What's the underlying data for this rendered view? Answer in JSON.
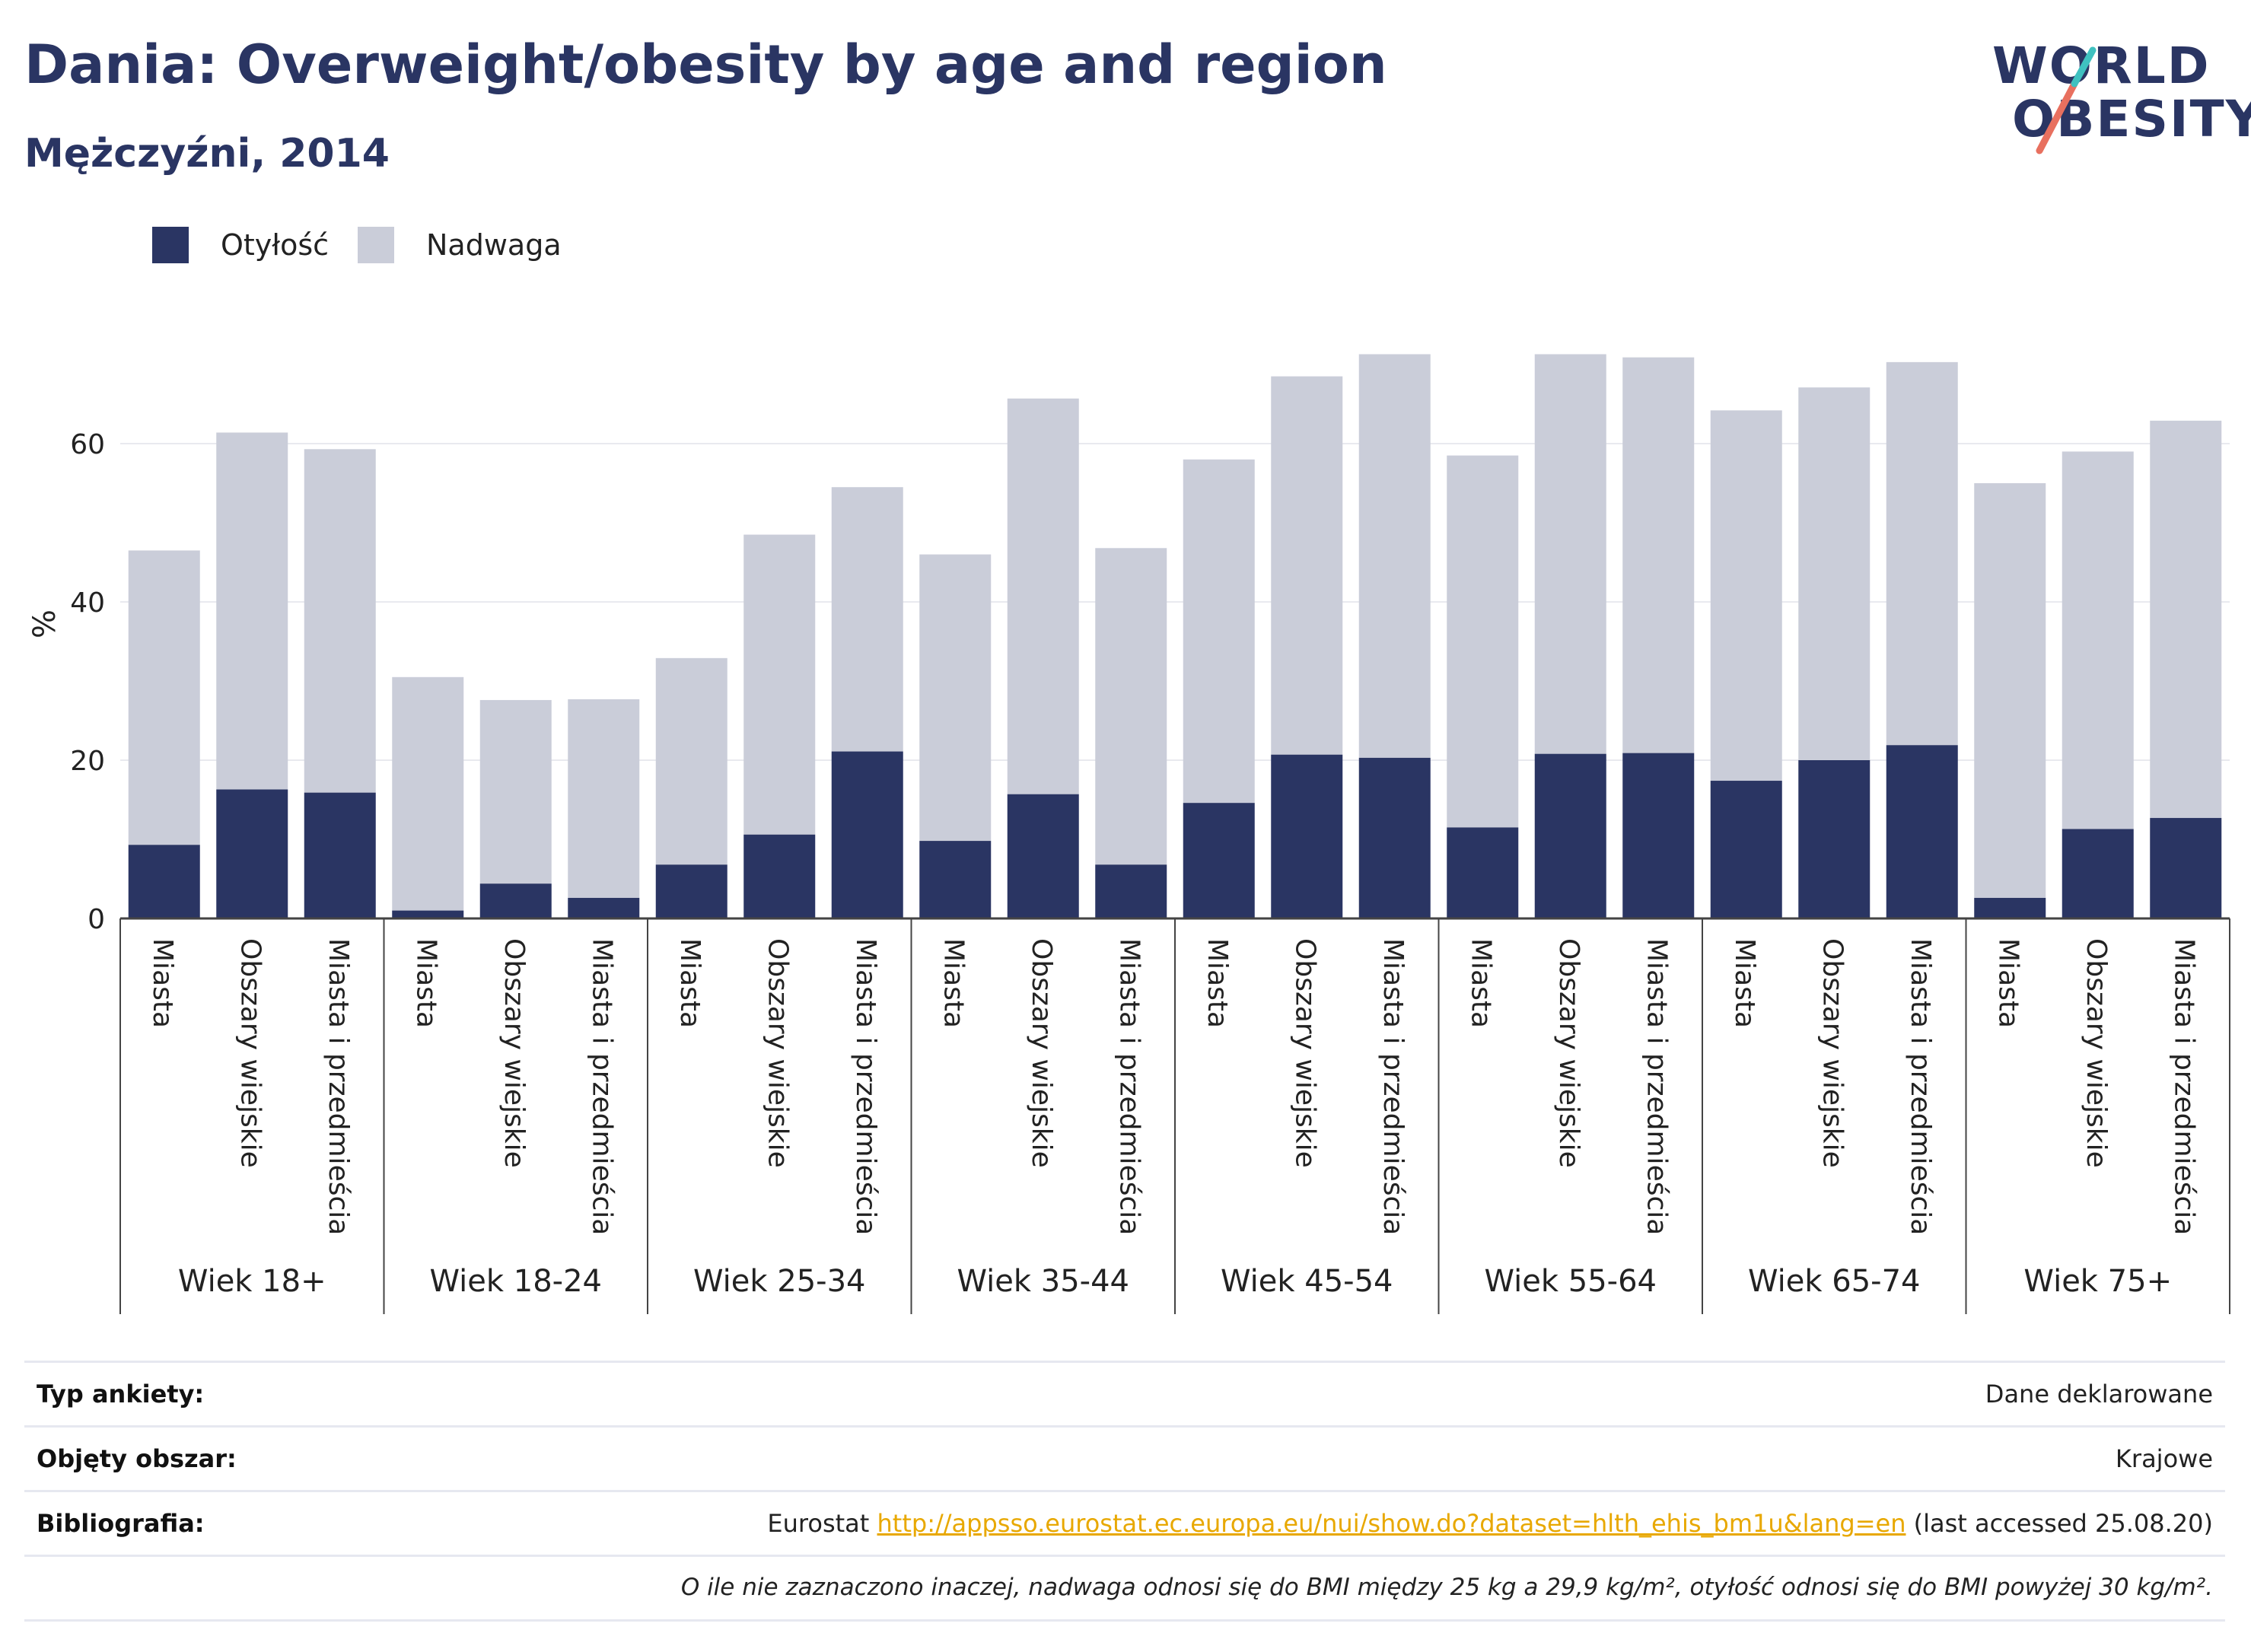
{
  "header": {
    "title": "Dania: Overweight/obesity by age and region",
    "subtitle": "Mężczyźni, 2014"
  },
  "logo": {
    "line1": "WORLD",
    "line2": "OBESITY"
  },
  "legend": [
    {
      "label": "Otyłość",
      "color": "#2a3563"
    },
    {
      "label": "Nadwaga",
      "color": "#cacdd9"
    }
  ],
  "chart_data": {
    "type": "bar",
    "stacked": true,
    "ylabel": "%",
    "ylim": [
      0,
      77
    ],
    "yticks": [
      0,
      20,
      40,
      60
    ],
    "grid": true,
    "legend_position": "top-left",
    "groups": [
      "Wiek 18+",
      "Wiek 18-24",
      "Wiek 25-34",
      "Wiek 35-44",
      "Wiek 45-54",
      "Wiek 55-64",
      "Wiek 65-74",
      "Wiek 75+"
    ],
    "subcategories": [
      "Miasta",
      "Obszary wiejskie",
      "Miasta i przedmieścia"
    ],
    "series": [
      {
        "name": "Otyłość",
        "color": "#2a3563",
        "values": [
          9.3,
          16.3,
          15.9,
          1.0,
          4.4,
          2.6,
          6.8,
          10.6,
          21.1,
          9.8,
          15.7,
          6.8,
          14.6,
          20.7,
          20.3,
          11.5,
          20.8,
          20.9,
          17.4,
          20.0,
          21.9,
          2.6,
          11.3,
          12.7
        ]
      },
      {
        "name": "Nadwaga",
        "color": "#cacdd9",
        "values": [
          37.2,
          45.1,
          43.4,
          29.5,
          23.2,
          25.1,
          26.1,
          37.9,
          33.4,
          36.2,
          50.0,
          40.0,
          43.4,
          47.8,
          51.0,
          47.0,
          50.5,
          50.0,
          46.8,
          47.1,
          48.4,
          52.4,
          47.7,
          50.2
        ]
      }
    ]
  },
  "info": {
    "survey_label": "Typ ankiety:",
    "survey_value": "Dane deklarowane",
    "area_label": "Objęty obszar:",
    "area_value": "Krajowe",
    "bib_label": "Bibliografia:",
    "bib_prefix": "Eurostat ",
    "bib_link": "http://appsso.eurostat.ec.europa.eu/nui/show.do?dataset=hlth_ehis_bm1u&lang=en",
    "bib_suffix": " (last accessed 25.08.20)",
    "note": "O ile nie zaznaczono inaczej, nadwaga odnosi się do BMI między 25 kg a 29,9 kg/m², otyłość odnosi się do BMI powyżej 30 kg/m²."
  }
}
